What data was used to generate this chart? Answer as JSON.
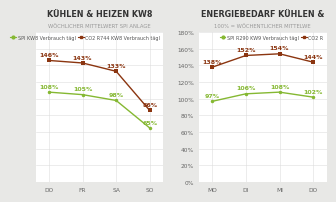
{
  "chart1": {
    "title": "KÜHLEN & HEIZEN KW8",
    "subtitle": "WÖCHLICHER MITTELWERT SPI ANLAGE",
    "x_labels": [
      "DO",
      "FR",
      "SA",
      "SO"
    ],
    "line1_label": "SPI KW8 Verbrauch tägl",
    "line1_values": [
      108,
      105,
      98,
      65
    ],
    "line1_color": "#85b832",
    "line2_label": "CO2 R744 KW8 Verbrauch tägl",
    "line2_values": [
      146,
      143,
      133,
      86
    ],
    "line2_color": "#8B3510",
    "ylim": [
      40,
      180
    ],
    "show_yaxis": false
  },
  "chart2": {
    "title": "ENERGIEBEDARF KÜHLEN &",
    "subtitle": "100% = WÖCHENTLICHER MITTELWE",
    "x_labels": [
      "MO",
      "DI",
      "MI",
      "DO"
    ],
    "line1_label": "SPI R290 KW9 Verbrauch tägl",
    "line1_values": [
      97,
      106,
      108,
      102
    ],
    "line1_color": "#85b832",
    "line2_label": "CO2 R",
    "line2_values": [
      138,
      152,
      154,
      144
    ],
    "line2_color": "#8B3510",
    "ylim": [
      0,
      180
    ],
    "show_yaxis": true
  },
  "bg_color": "#e8e8e6",
  "panel_color": "#ffffff",
  "grid_color": "#dddddd",
  "title_fontsize": 5.8,
  "subtitle_fontsize": 3.8,
  "tick_fontsize": 4.2,
  "annotation_fontsize": 4.5,
  "legend_fontsize": 3.5
}
